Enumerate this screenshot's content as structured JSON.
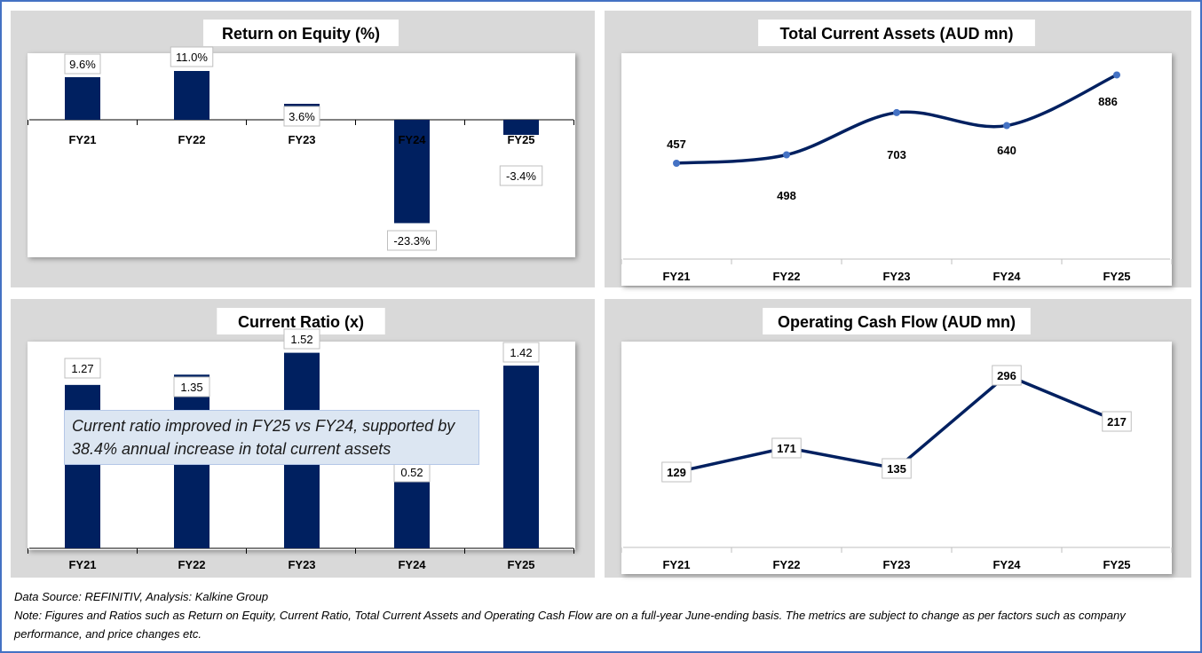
{
  "chart_data": [
    {
      "type": "bar",
      "title": "Return on Equity (%)",
      "categories": [
        "FY21",
        "FY22",
        "FY23",
        "FY24",
        "FY25"
      ],
      "values": [
        9.6,
        11.0,
        3.6,
        -23.3,
        -3.4
      ],
      "labels": [
        "9.6%",
        "11.0%",
        "3.6%",
        "-23.3%",
        "-3.4%"
      ],
      "color": "#002060"
    },
    {
      "type": "line",
      "title": "Total Current Assets (AUD mn)",
      "categories": [
        "FY21",
        "FY22",
        "FY23",
        "FY24",
        "FY25"
      ],
      "values": [
        457,
        498,
        703,
        640,
        886
      ],
      "labels": [
        "457",
        "498",
        "703",
        "640",
        "886"
      ],
      "smooth": true,
      "color": "#002060",
      "marker_color": "#4472c4"
    },
    {
      "type": "bar",
      "title": "Current Ratio (x)",
      "categories": [
        "FY21",
        "FY22",
        "FY23",
        "FY24",
        "FY25"
      ],
      "values": [
        1.27,
        1.35,
        1.52,
        0.52,
        1.42
      ],
      "labels": [
        "1.27",
        "1.35",
        "1.52",
        "0.52",
        "1.42"
      ],
      "color": "#002060",
      "annotation": "Current ratio improved in FY25  vs FY24, supported by 38.4% annual increase in total current assets"
    },
    {
      "type": "line",
      "title": "Operating Cash Flow (AUD mn)",
      "categories": [
        "FY21",
        "FY22",
        "FY23",
        "FY24",
        "FY25"
      ],
      "values": [
        129,
        171,
        135,
        296,
        217
      ],
      "labels": [
        "129",
        "171",
        "135",
        "296",
        "217"
      ],
      "smooth": false,
      "color": "#002060"
    }
  ],
  "footer": {
    "source": "Data Source: REFINITIV, Analysis: Kalkine Group",
    "note": "Note: Figures and Ratios such as Return on Equity, Current Ratio, Total Current Assets and Operating Cash Flow are on a full-year June-ending basis. The metrics are subject to change as per factors such as company performance, and price changes etc."
  }
}
